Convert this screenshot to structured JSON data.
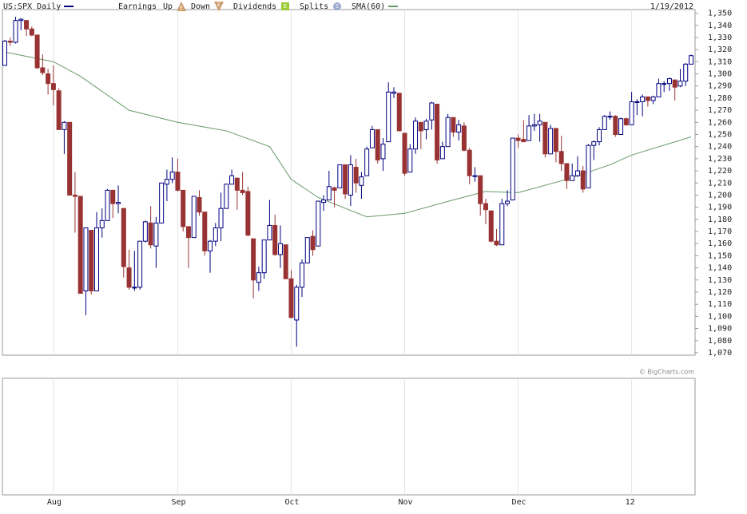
{
  "chart_data": {
    "type": "candlestick",
    "title": "US:SPX Daily",
    "legend": {
      "earnings": "Earnings",
      "up": "Up",
      "up_icon": "E",
      "down": "Down",
      "down_icon": "E",
      "dividends": "Dividends",
      "dividends_icon": "D",
      "splits": "Splits",
      "splits_icon": "S",
      "sma": "SMA(60)"
    },
    "date": "1/19/2012",
    "copyright": "© BigCharts.com",
    "up_color": "#000080",
    "down_color": "#993333",
    "sma_color": "#669966",
    "title_color": "#000080",
    "x": [
      "2011-07-19",
      "2011-07-20",
      "2011-07-21",
      "2011-07-22",
      "2011-07-25",
      "2011-07-26",
      "2011-07-27",
      "2011-07-28",
      "2011-07-29",
      "2011-08-01",
      "2011-08-02",
      "2011-08-03",
      "2011-08-04",
      "2011-08-05",
      "2011-08-08",
      "2011-08-09",
      "2011-08-10",
      "2011-08-11",
      "2011-08-12",
      "2011-08-15",
      "2011-08-16",
      "2011-08-17",
      "2011-08-18",
      "2011-08-19",
      "2011-08-22",
      "2011-08-23",
      "2011-08-24",
      "2011-08-25",
      "2011-08-26",
      "2011-08-29",
      "2011-08-30",
      "2011-08-31",
      "2011-09-01",
      "2011-09-02",
      "2011-09-06",
      "2011-09-07",
      "2011-09-08",
      "2011-09-09",
      "2011-09-12",
      "2011-09-13",
      "2011-09-14",
      "2011-09-15",
      "2011-09-16",
      "2011-09-19",
      "2011-09-20",
      "2011-09-21",
      "2011-09-22",
      "2011-09-23",
      "2011-09-26",
      "2011-09-27",
      "2011-09-28",
      "2011-09-29",
      "2011-09-30",
      "2011-10-03",
      "2011-10-04",
      "2011-10-05",
      "2011-10-06",
      "2011-10-07",
      "2011-10-10",
      "2011-10-11",
      "2011-10-12",
      "2011-10-13",
      "2011-10-14",
      "2011-10-17",
      "2011-10-18",
      "2011-10-19",
      "2011-10-20",
      "2011-10-21",
      "2011-10-24",
      "2011-10-25",
      "2011-10-26",
      "2011-10-27",
      "2011-10-28",
      "2011-10-31",
      "2011-11-01",
      "2011-11-02",
      "2011-11-03",
      "2011-11-04",
      "2011-11-07",
      "2011-11-08",
      "2011-11-09",
      "2011-11-10",
      "2011-11-11",
      "2011-11-14",
      "2011-11-15",
      "2011-11-16",
      "2011-11-17",
      "2011-11-18",
      "2011-11-21",
      "2011-11-22",
      "2011-11-23",
      "2011-11-25",
      "2011-11-28",
      "2011-11-29",
      "2011-11-30",
      "2011-12-01",
      "2011-12-02",
      "2011-12-05",
      "2011-12-06",
      "2011-12-07",
      "2011-12-08",
      "2011-12-09",
      "2011-12-12",
      "2011-12-13",
      "2011-12-14",
      "2011-12-15",
      "2011-12-16",
      "2011-12-19",
      "2011-12-20",
      "2011-12-21",
      "2011-12-22",
      "2011-12-23",
      "2011-12-27",
      "2011-12-28",
      "2011-12-29",
      "2011-12-30",
      "2012-01-03",
      "2012-01-04",
      "2012-01-05",
      "2012-01-06",
      "2012-01-09",
      "2012-01-10",
      "2012-01-11",
      "2012-01-12",
      "2012-01-13",
      "2012-01-17",
      "2012-01-18",
      "2012-01-19"
    ],
    "ohlc": [
      [
        1307,
        1328,
        1307,
        1327
      ],
      [
        1327,
        1330,
        1323,
        1326
      ],
      [
        1326,
        1347,
        1325,
        1344
      ],
      [
        1344,
        1346,
        1336,
        1345
      ],
      [
        1344,
        1344,
        1331,
        1337
      ],
      [
        1337,
        1339,
        1331,
        1332
      ],
      [
        1332,
        1332,
        1304,
        1305
      ],
      [
        1305,
        1316,
        1299,
        1301
      ],
      [
        1300,
        1304,
        1283,
        1292
      ],
      [
        1292,
        1307,
        1274,
        1287
      ],
      [
        1286,
        1288,
        1254,
        1254
      ],
      [
        1254,
        1261,
        1234,
        1260
      ],
      [
        1260,
        1260,
        1200,
        1200
      ],
      [
        1200,
        1219,
        1169,
        1199
      ],
      [
        1199,
        1199,
        1119,
        1119
      ],
      [
        1121,
        1173,
        1101,
        1173
      ],
      [
        1171,
        1171,
        1118,
        1121
      ],
      [
        1121,
        1186,
        1121,
        1173
      ],
      [
        1173,
        1189,
        1165,
        1179
      ],
      [
        1179,
        1205,
        1179,
        1204
      ],
      [
        1204,
        1204,
        1181,
        1193
      ],
      [
        1193,
        1208,
        1185,
        1194
      ],
      [
        1189,
        1189,
        1132,
        1141
      ],
      [
        1140,
        1155,
        1122,
        1124
      ],
      [
        1124,
        1154,
        1121,
        1124
      ],
      [
        1124,
        1162,
        1122,
        1162
      ],
      [
        1162,
        1179,
        1161,
        1178
      ],
      [
        1177,
        1191,
        1156,
        1159
      ],
      [
        1158,
        1182,
        1140,
        1177
      ],
      [
        1177,
        1210,
        1177,
        1210
      ],
      [
        1209,
        1221,
        1195,
        1213
      ],
      [
        1213,
        1231,
        1210,
        1219
      ],
      [
        1219,
        1230,
        1203,
        1204
      ],
      [
        1204,
        1204,
        1170,
        1174
      ],
      [
        1174,
        1174,
        1140,
        1165
      ],
      [
        1165,
        1199,
        1165,
        1199
      ],
      [
        1198,
        1204,
        1183,
        1186
      ],
      [
        1186,
        1186,
        1150,
        1154
      ],
      [
        1154,
        1163,
        1136,
        1162
      ],
      [
        1162,
        1177,
        1158,
        1173
      ],
      [
        1173,
        1202,
        1162,
        1189
      ],
      [
        1189,
        1209,
        1189,
        1209
      ],
      [
        1209,
        1221,
        1209,
        1216
      ],
      [
        1214,
        1214,
        1188,
        1204
      ],
      [
        1204,
        1219,
        1200,
        1202
      ],
      [
        1203,
        1207,
        1166,
        1167
      ],
      [
        1164,
        1164,
        1115,
        1130
      ],
      [
        1128,
        1141,
        1121,
        1136
      ],
      [
        1136,
        1163,
        1131,
        1163
      ],
      [
        1163,
        1196,
        1163,
        1175
      ],
      [
        1175,
        1184,
        1150,
        1151
      ],
      [
        1151,
        1175,
        1140,
        1160
      ],
      [
        1159,
        1159,
        1131,
        1131
      ],
      [
        1131,
        1138,
        1099,
        1099
      ],
      [
        1097,
        1126,
        1075,
        1124
      ],
      [
        1124,
        1147,
        1116,
        1144
      ],
      [
        1144,
        1165,
        1144,
        1165
      ],
      [
        1166,
        1171,
        1150,
        1155
      ],
      [
        1158,
        1195,
        1158,
        1195
      ],
      [
        1194,
        1200,
        1187,
        1196
      ],
      [
        1196,
        1220,
        1196,
        1207
      ],
      [
        1206,
        1207,
        1190,
        1204
      ],
      [
        1206,
        1225,
        1206,
        1225
      ],
      [
        1225,
        1225,
        1197,
        1201
      ],
      [
        1200,
        1233,
        1191,
        1225
      ],
      [
        1223,
        1230,
        1202,
        1210
      ],
      [
        1208,
        1219,
        1197,
        1215
      ],
      [
        1216,
        1240,
        1216,
        1238
      ],
      [
        1239,
        1257,
        1239,
        1254
      ],
      [
        1254,
        1254,
        1226,
        1229
      ],
      [
        1230,
        1247,
        1220,
        1242
      ],
      [
        1244,
        1293,
        1244,
        1285
      ],
      [
        1284,
        1289,
        1280,
        1285
      ],
      [
        1284,
        1284,
        1253,
        1253
      ],
      [
        1251,
        1251,
        1216,
        1218
      ],
      [
        1219,
        1242,
        1219,
        1238
      ],
      [
        1238,
        1264,
        1234,
        1261
      ],
      [
        1260,
        1260,
        1238,
        1253
      ],
      [
        1254,
        1263,
        1246,
        1261
      ],
      [
        1262,
        1277,
        1254,
        1276
      ],
      [
        1275,
        1275,
        1226,
        1229
      ],
      [
        1230,
        1244,
        1230,
        1240
      ],
      [
        1240,
        1267,
        1240,
        1264
      ],
      [
        1264,
        1264,
        1248,
        1252
      ],
      [
        1252,
        1262,
        1245,
        1258
      ],
      [
        1257,
        1260,
        1236,
        1237
      ],
      [
        1237,
        1239,
        1209,
        1216
      ],
      [
        1216,
        1223,
        1211,
        1216
      ],
      [
        1216,
        1216,
        1183,
        1193
      ],
      [
        1193,
        1197,
        1176,
        1188
      ],
      [
        1187,
        1187,
        1161,
        1162
      ],
      [
        1162,
        1172,
        1158,
        1159
      ],
      [
        1159,
        1197,
        1159,
        1193
      ],
      [
        1193,
        1204,
        1191,
        1195
      ],
      [
        1196,
        1247,
        1196,
        1247
      ],
      [
        1247,
        1250,
        1239,
        1245
      ],
      [
        1246,
        1262,
        1244,
        1244
      ],
      [
        1245,
        1266,
        1245,
        1257
      ],
      [
        1257,
        1267,
        1253,
        1258
      ],
      [
        1258,
        1267,
        1244,
        1261
      ],
      [
        1260,
        1260,
        1231,
        1234
      ],
      [
        1234,
        1258,
        1234,
        1255
      ],
      [
        1255,
        1255,
        1227,
        1236
      ],
      [
        1236,
        1249,
        1220,
        1226
      ],
      [
        1226,
        1226,
        1205,
        1212
      ],
      [
        1212,
        1226,
        1212,
        1216
      ],
      [
        1216,
        1232,
        1215,
        1220
      ],
      [
        1220,
        1224,
        1202,
        1205
      ],
      [
        1206,
        1242,
        1206,
        1241
      ],
      [
        1241,
        1245,
        1229,
        1244
      ],
      [
        1244,
        1256,
        1241,
        1254
      ],
      [
        1254,
        1266,
        1254,
        1265
      ],
      [
        1265,
        1269,
        1262,
        1265
      ],
      [
        1265,
        1266,
        1248,
        1250
      ],
      [
        1250,
        1264,
        1250,
        1263
      ],
      [
        1263,
        1264,
        1257,
        1258
      ],
      [
        1258,
        1285,
        1258,
        1277
      ],
      [
        1277,
        1279,
        1266,
        1277
      ],
      [
        1277,
        1283,
        1265,
        1281
      ],
      [
        1281,
        1281,
        1273,
        1278
      ],
      [
        1278,
        1282,
        1275,
        1281
      ],
      [
        1281,
        1296,
        1281,
        1292
      ],
      [
        1292,
        1294,
        1285,
        1292
      ],
      [
        1292,
        1297,
        1286,
        1296
      ],
      [
        1295,
        1295,
        1278,
        1289
      ],
      [
        1290,
        1304,
        1289,
        1294
      ],
      [
        1294,
        1309,
        1290,
        1308
      ],
      [
        1308,
        1316,
        1308,
        1315
      ]
    ],
    "sma": {
      "name": "SMA(60)",
      "x": [
        "2011-07-19",
        "2011-08-01",
        "2011-08-08",
        "2011-08-19",
        "2011-09-01",
        "2011-09-15",
        "2011-09-27",
        "2011-10-03",
        "2011-10-10",
        "2011-10-21",
        "2011-11-01",
        "2011-11-14",
        "2011-11-22",
        "2011-12-01",
        "2011-12-14",
        "2011-12-27",
        "2012-01-03",
        "2012-01-19"
      ],
      "values": [
        1318,
        1310,
        1298,
        1270,
        1260,
        1253,
        1240,
        1213,
        1198,
        1182,
        1185,
        1196,
        1203,
        1202,
        1213,
        1225,
        1233,
        1248
      ]
    },
    "ylim": [
      1068,
      1353
    ],
    "yticks": [
      {
        "value": 1070,
        "label": "1,070"
      },
      {
        "value": 1080,
        "label": "1,080"
      },
      {
        "value": 1090,
        "label": "1,090"
      },
      {
        "value": 1100,
        "label": "1,100"
      },
      {
        "value": 1110,
        "label": "1,110"
      },
      {
        "value": 1120,
        "label": "1,120"
      },
      {
        "value": 1130,
        "label": "1,130"
      },
      {
        "value": 1140,
        "label": "1,140"
      },
      {
        "value": 1150,
        "label": "1,150"
      },
      {
        "value": 1160,
        "label": "1,160"
      },
      {
        "value": 1170,
        "label": "1,170"
      },
      {
        "value": 1180,
        "label": "1,180"
      },
      {
        "value": 1190,
        "label": "1,190"
      },
      {
        "value": 1200,
        "label": "1,200"
      },
      {
        "value": 1210,
        "label": "1,210"
      },
      {
        "value": 1220,
        "label": "1,220"
      },
      {
        "value": 1230,
        "label": "1,230"
      },
      {
        "value": 1240,
        "label": "1,240"
      },
      {
        "value": 1250,
        "label": "1,250"
      },
      {
        "value": 1260,
        "label": "1,260"
      },
      {
        "value": 1270,
        "label": "1,270"
      },
      {
        "value": 1280,
        "label": "1,280"
      },
      {
        "value": 1290,
        "label": "1,290"
      },
      {
        "value": 1300,
        "label": "1,300"
      },
      {
        "value": 1310,
        "label": "1,310"
      },
      {
        "value": 1320,
        "label": "1,320"
      },
      {
        "value": 1330,
        "label": "1,330"
      },
      {
        "value": 1340,
        "label": "1,340"
      },
      {
        "value": 1350,
        "label": "1,350"
      }
    ],
    "xticks": [
      {
        "value": "2011-08-01",
        "label": "Aug"
      },
      {
        "value": "2011-09-01",
        "label": "Sep"
      },
      {
        "value": "2011-10-03",
        "label": "Oct"
      },
      {
        "value": "2011-11-01",
        "label": "Nov"
      },
      {
        "value": "2011-12-01",
        "label": "Dec"
      },
      {
        "value": "2012-01-03",
        "label": "12"
      }
    ],
    "grid": true
  }
}
